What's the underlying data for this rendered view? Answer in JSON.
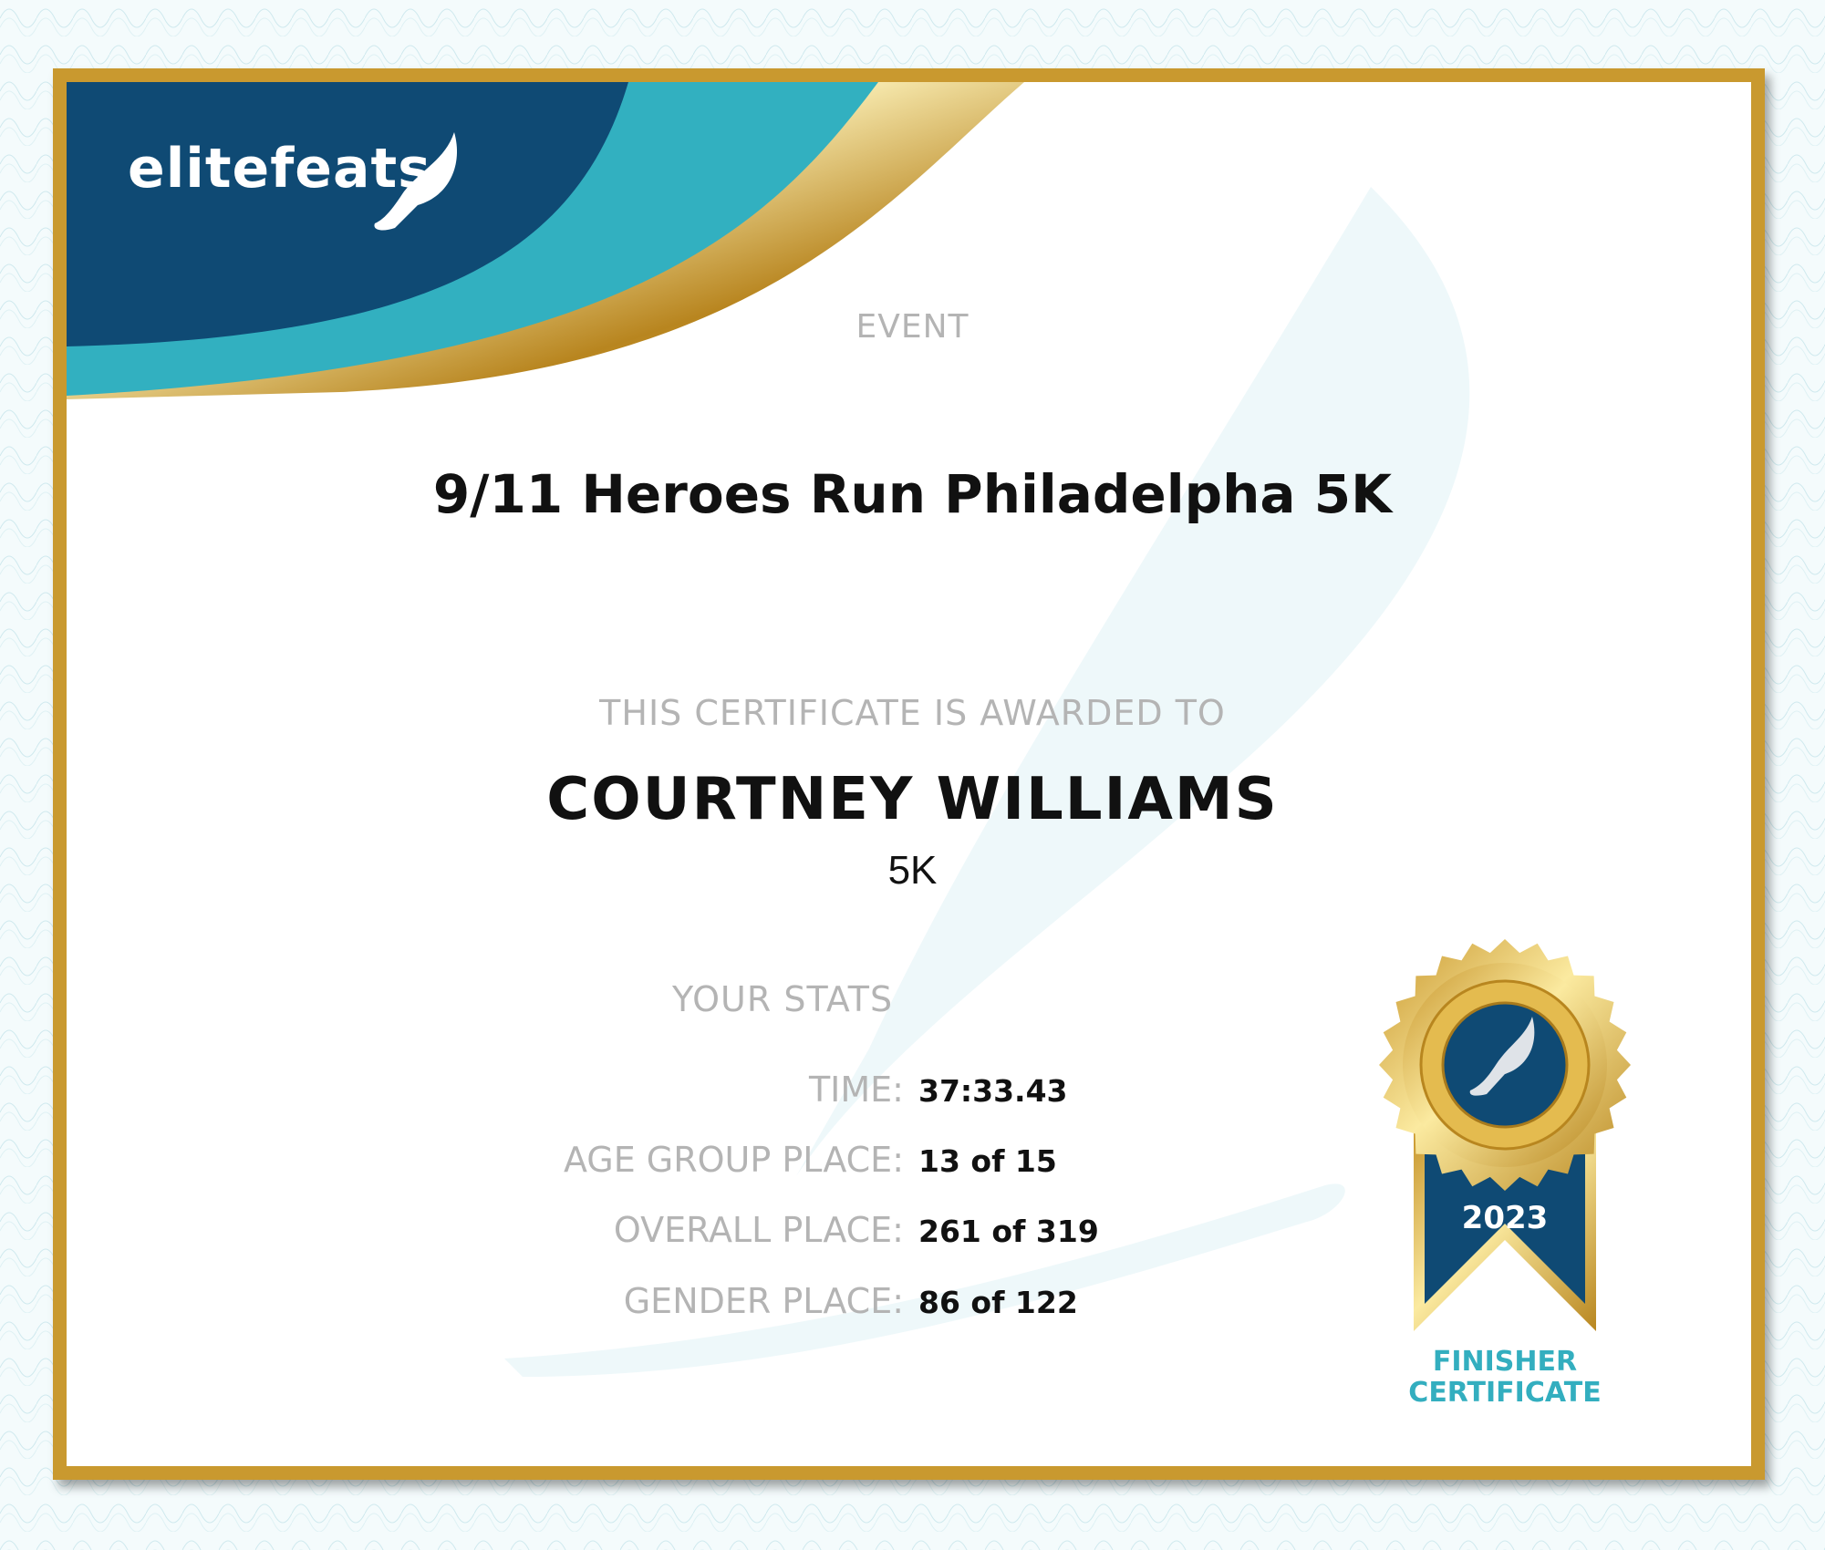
{
  "brand": {
    "logo_text": "elitefeats",
    "colors": {
      "navy": "#0f4a74",
      "teal": "#32b0c0",
      "gold": "#c9992f"
    }
  },
  "certificate": {
    "event_label": "EVENT",
    "event_name": "9/11 Heroes Run Philadelpha 5K",
    "awarded_label": "THIS CERTIFICATE IS AWARDED TO",
    "recipient": "COURTNEY WILLIAMS",
    "distance": "5K",
    "stats_heading": "YOUR STATS",
    "stats": [
      {
        "label": "TIME:",
        "value": "37:33.43"
      },
      {
        "label": "AGE GROUP PLACE:",
        "value": "13 of 15"
      },
      {
        "label": "OVERALL PLACE:",
        "value": "261 of 319"
      },
      {
        "label": "GENDER PLACE:",
        "value": "86 of 122"
      }
    ]
  },
  "badge": {
    "year": "2023",
    "line1": "FINISHER",
    "line2": "CERTIFICATE",
    "icon": "winged-shoe-icon"
  }
}
